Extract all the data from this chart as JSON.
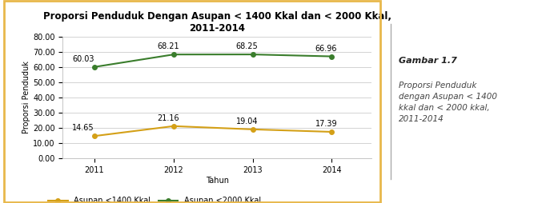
{
  "title": "Proporsi Penduduk Dengan Asupan < 1400 Kkal dan < 2000 Kkal,\n2011-2014",
  "xlabel": "Tahun",
  "ylabel": "Proporsi Penduduk",
  "years": [
    2011,
    2012,
    2013,
    2014
  ],
  "series1_label": "Asupan <1400 Kkal",
  "series1_values": [
    14.65,
    21.16,
    19.04,
    17.39
  ],
  "series1_color": "#D4A017",
  "series2_label": "Asupan <2000 Kkal",
  "series2_values": [
    60.03,
    68.21,
    68.25,
    66.96
  ],
  "series2_color": "#3A7D2C",
  "ylim": [
    0,
    80
  ],
  "yticks": [
    0.0,
    10.0,
    20.0,
    30.0,
    40.0,
    50.0,
    60.0,
    70.0,
    80.0
  ],
  "chart_bg": "#FFFFFF",
  "border_color": "#E8B84B",
  "grid_color": "#CCCCCC",
  "caption_bold": "Gambar 1.7",
  "caption_line1": "Proporsi Penduduk",
  "caption_line2": "dengan Asupan < 1400",
  "caption_line3": "kkal dan < 2000 kkal,",
  "caption_line4": "2011-2014",
  "title_fontsize": 8.5,
  "axis_label_fontsize": 7,
  "tick_fontsize": 7,
  "legend_fontsize": 7,
  "annotation_fontsize": 7
}
